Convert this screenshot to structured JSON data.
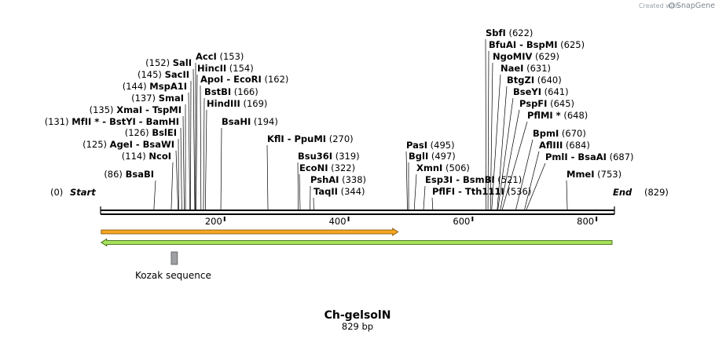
{
  "credit": {
    "prefix": "Created with",
    "brand": "SnapGene"
  },
  "sequence": {
    "name": "Ch-gelsolN",
    "length_label": "829 bp",
    "length": 829
  },
  "ruler": {
    "ticks": [
      200,
      400,
      600,
      800
    ]
  },
  "ends": {
    "start": {
      "label": "Start",
      "pos": 0,
      "pos_label": "(0)"
    },
    "end": {
      "label": "End",
      "pos": 829,
      "pos_label": "(829)"
    }
  },
  "features": [
    {
      "name": "orange-arrow",
      "direction": "forward",
      "start": 1,
      "end": 480,
      "color": "#f5a623",
      "border": "#7a4a00"
    },
    {
      "name": "green-arrow",
      "direction": "reverse",
      "start": 1,
      "end": 829,
      "color": "#a6e05a",
      "border": "#2d5a00"
    },
    {
      "name": "Kozak sequence",
      "start": 114,
      "end": 124,
      "color": "#9ea0a4"
    }
  ],
  "sites": [
    {
      "label": "BsaBI",
      "pos_label": "(86)",
      "pos": 86
    },
    {
      "label": "NcoI",
      "pos_label": "(114)",
      "pos": 114
    },
    {
      "label": "AgeI  - BsaWI",
      "pos_label": "(125)",
      "pos": 125
    },
    {
      "label": "BslEI",
      "pos_label": "(126)",
      "pos": 126
    },
    {
      "label": "MfII * - BstYI  - BamHI",
      "pos_label": "(131)",
      "pos": 131
    },
    {
      "label": "XmaI  - TspMI",
      "pos_label": "(135)",
      "pos": 135
    },
    {
      "label": "SmaI",
      "pos_label": "(137)",
      "pos": 137
    },
    {
      "label": "MspA1I",
      "pos_label": "(144)",
      "pos": 144
    },
    {
      "label": "SacII",
      "pos_label": "(145)",
      "pos": 145
    },
    {
      "label": "SalI",
      "pos_label": "(152)",
      "pos": 152
    },
    {
      "label": "AccI",
      "pos_label": "(153)",
      "pos": 153
    },
    {
      "label": "HincII",
      "pos_label": "(154)",
      "pos": 154
    },
    {
      "label": "ApoI  - EcoRI",
      "pos_label": "(162)",
      "pos": 162
    },
    {
      "label": "BstBI",
      "pos_label": "(166)",
      "pos": 166
    },
    {
      "label": "HindIII",
      "pos_label": "(169)",
      "pos": 169
    },
    {
      "label": "BsaHI",
      "pos_label": "(194)",
      "pos": 194
    },
    {
      "label": "KflI  - PpuMI",
      "pos_label": "(270)",
      "pos": 270
    },
    {
      "label": "Bsu36I",
      "pos_label": "(319)",
      "pos": 319
    },
    {
      "label": "EcoNI",
      "pos_label": "(322)",
      "pos": 322
    },
    {
      "label": "PshAI",
      "pos_label": "(338)",
      "pos": 338
    },
    {
      "label": "TaqII",
      "pos_label": "(344)",
      "pos": 344
    },
    {
      "label": "PasI",
      "pos_label": "(495)",
      "pos": 495
    },
    {
      "label": "BglI",
      "pos_label": "(497)",
      "pos": 497
    },
    {
      "label": "XmnI",
      "pos_label": "(506)",
      "pos": 506
    },
    {
      "label": "Esp3I  - BsmBI",
      "pos_label": "(521)",
      "pos": 521
    },
    {
      "label": "PflFI  - Tth111I",
      "pos_label": "(536)",
      "pos": 536
    },
    {
      "label": "SbfI",
      "pos_label": "(622)",
      "pos": 622
    },
    {
      "label": "BfuAI  - BspMI",
      "pos_label": "(625)",
      "pos": 625
    },
    {
      "label": "NgoMIV",
      "pos_label": "(629)",
      "pos": 629
    },
    {
      "label": "NaeI",
      "pos_label": "(631)",
      "pos": 631
    },
    {
      "label": "BtgZI",
      "pos_label": "(640)",
      "pos": 640
    },
    {
      "label": "BseYI",
      "pos_label": "(641)",
      "pos": 641
    },
    {
      "label": "PspFI",
      "pos_label": "(645)",
      "pos": 645
    },
    {
      "label": "PflMI *",
      "pos_label": "(648)",
      "pos": 648
    },
    {
      "label": "BpmI",
      "pos_label": "(670)",
      "pos": 670
    },
    {
      "label": "AflIII",
      "pos_label": "(684)",
      "pos": 684
    },
    {
      "label": "PmlI  - BsaAI",
      "pos_label": "(687)",
      "pos": 687
    },
    {
      "label": "MmeI",
      "pos_label": "(753)",
      "pos": 753
    }
  ]
}
